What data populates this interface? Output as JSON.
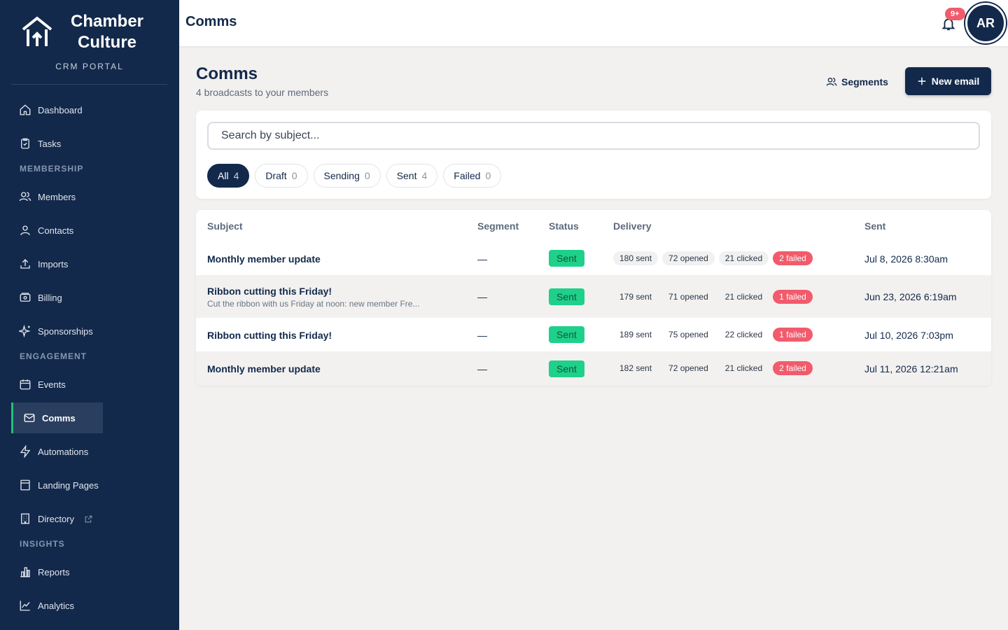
{
  "brand": {
    "name_line1": "Chamber",
    "name_line2": "Culture",
    "subtitle": "CRM PORTAL"
  },
  "sidebar": {
    "items": [
      {
        "label": "Dashboard",
        "icon": "home-icon"
      },
      {
        "label": "Tasks",
        "icon": "clipboard-check-icon"
      },
      {
        "section": "MEMBERSHIP"
      },
      {
        "label": "Members",
        "icon": "users-icon"
      },
      {
        "label": "Contacts",
        "icon": "user-icon"
      },
      {
        "label": "Imports",
        "icon": "upload-icon"
      },
      {
        "label": "Billing",
        "icon": "wallet-icon"
      },
      {
        "label": "Sponsorships",
        "icon": "sparkle-icon"
      },
      {
        "section": "ENGAGEMENT"
      },
      {
        "label": "Events",
        "icon": "calendar-icon"
      },
      {
        "label": "Comms",
        "icon": "mail-icon",
        "active": true
      },
      {
        "label": "Automations",
        "icon": "bolt-icon"
      },
      {
        "label": "Landing Pages",
        "icon": "layout-icon"
      },
      {
        "label": "Directory",
        "icon": "building-icon",
        "external": true
      },
      {
        "section": "INSIGHTS"
      },
      {
        "label": "Reports",
        "icon": "bar-chart-icon"
      },
      {
        "label": "Analytics",
        "icon": "line-chart-icon"
      }
    ]
  },
  "topbar": {
    "title": "Comms",
    "notif_badge": "9+",
    "avatar_initials": "AR"
  },
  "header": {
    "title": "Comms",
    "subtitle": "4 broadcasts to your members",
    "segments_label": "Segments",
    "new_email_label": "New email"
  },
  "search": {
    "placeholder": "Search by subject..."
  },
  "filters": [
    {
      "label": "All",
      "count": "4",
      "active": true
    },
    {
      "label": "Draft",
      "count": "0"
    },
    {
      "label": "Sending",
      "count": "0"
    },
    {
      "label": "Sent",
      "count": "4"
    },
    {
      "label": "Failed",
      "count": "0"
    }
  ],
  "table": {
    "columns": [
      "Subject",
      "Segment",
      "Status",
      "Delivery",
      "Sent"
    ],
    "rows": [
      {
        "subject": "Monthly member update",
        "preview": "",
        "segment": "—",
        "status": "Sent",
        "delivery": [
          "180 sent",
          "72 opened",
          "21 clicked",
          "2 failed"
        ],
        "sent": "Jul 8, 2026 8:30am"
      },
      {
        "subject": "Ribbon cutting this Friday!",
        "preview": "Cut the ribbon with us Friday at noon: new member Fre...",
        "segment": "—",
        "status": "Sent",
        "delivery": [
          "179 sent",
          "71 opened",
          "21 clicked",
          "1 failed"
        ],
        "sent": "Jun 23, 2026 6:19am"
      },
      {
        "subject": "Ribbon cutting this Friday!",
        "preview": "",
        "segment": "—",
        "status": "Sent",
        "delivery": [
          "189 sent",
          "75 opened",
          "22 clicked",
          "1 failed"
        ],
        "sent": "Jul 10, 2026 7:03pm"
      },
      {
        "subject": "Monthly member update",
        "preview": "",
        "segment": "—",
        "status": "Sent",
        "delivery": [
          "182 sent",
          "72 opened",
          "21 clicked",
          "2 failed"
        ],
        "sent": "Jul 11, 2026 12:21am"
      }
    ]
  },
  "colors": {
    "navy": "#13294b",
    "accent_green": "#22c07a",
    "status_sent": "#1fd08a",
    "failed": "#f15b6c",
    "background": "#f2f1ef"
  }
}
